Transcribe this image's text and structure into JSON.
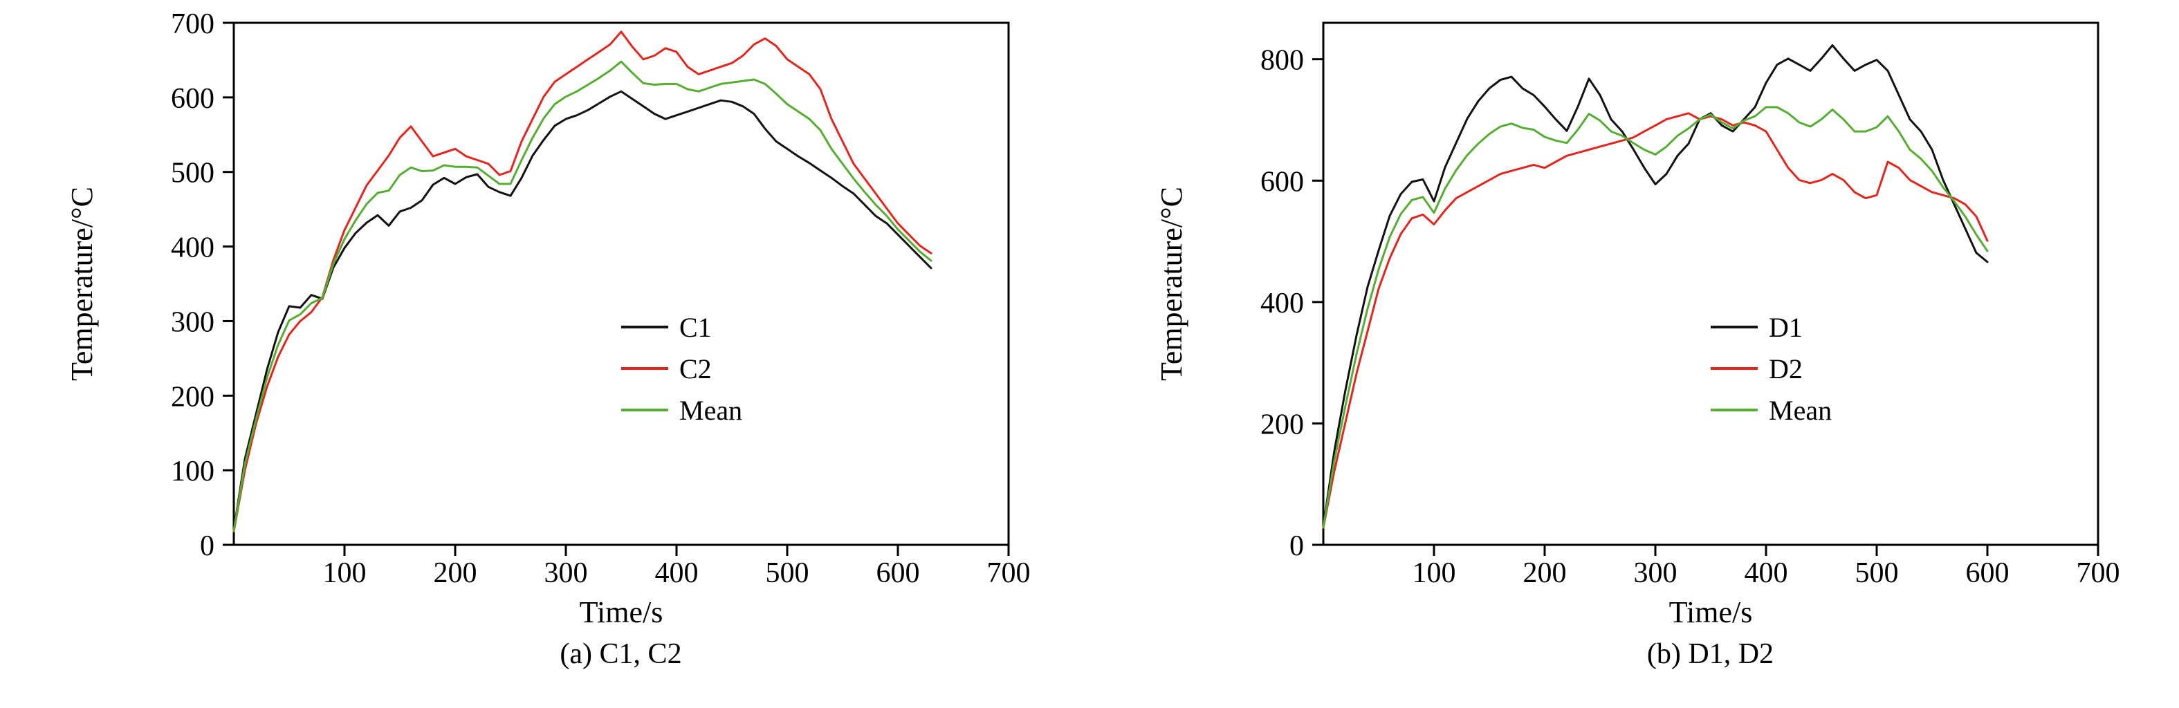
{
  "figure": {
    "caption_a": "(a) C1, C2",
    "caption_b": "(b) D1, D2"
  },
  "chart_data": [
    {
      "type": "line",
      "caption": "(a) C1, C2",
      "xlabel": "Time/s",
      "ylabel": "Temperature/°C",
      "xlim": [
        0,
        700
      ],
      "ylim": [
        0,
        700
      ],
      "xticks": [
        100,
        200,
        300,
        400,
        500,
        600,
        700
      ],
      "yticks": [
        0,
        100,
        200,
        300,
        400,
        500,
        600,
        700
      ],
      "grid": false,
      "legend_position": "right-center",
      "legend": [
        "C1",
        "C2",
        "Mean"
      ],
      "x": [
        0,
        10,
        20,
        30,
        40,
        50,
        60,
        70,
        80,
        90,
        100,
        110,
        120,
        130,
        140,
        150,
        160,
        170,
        180,
        190,
        200,
        210,
        220,
        230,
        240,
        250,
        260,
        270,
        280,
        290,
        300,
        310,
        320,
        330,
        340,
        350,
        360,
        370,
        380,
        390,
        400,
        410,
        420,
        430,
        440,
        450,
        460,
        470,
        480,
        490,
        500,
        510,
        520,
        530,
        540,
        550,
        560,
        570,
        580,
        590,
        600,
        610,
        620,
        630
      ],
      "series": [
        {
          "name": "C1",
          "color": "#111111",
          "values": [
            20,
            115,
            175,
            235,
            285,
            320,
            318,
            335,
            330,
            372,
            398,
            418,
            432,
            442,
            428,
            447,
            452,
            462,
            483,
            492,
            484,
            493,
            497,
            480,
            473,
            468,
            492,
            522,
            543,
            562,
            571,
            576,
            583,
            592,
            601,
            608,
            598,
            588,
            578,
            571,
            576,
            581,
            586,
            591,
            596,
            594,
            588,
            578,
            558,
            541,
            531,
            521,
            512,
            502,
            492,
            481,
            471,
            456,
            441,
            431,
            416,
            401,
            386,
            371
          ]
        },
        {
          "name": "C2",
          "color": "#e3261d",
          "values": [
            18,
            100,
            162,
            212,
            252,
            282,
            300,
            312,
            332,
            382,
            422,
            452,
            482,
            502,
            522,
            546,
            561,
            541,
            521,
            526,
            531,
            521,
            516,
            511,
            496,
            501,
            541,
            571,
            601,
            621,
            631,
            641,
            651,
            661,
            671,
            688,
            668,
            651,
            656,
            666,
            661,
            641,
            631,
            636,
            641,
            646,
            656,
            671,
            679,
            669,
            651,
            641,
            631,
            611,
            571,
            541,
            511,
            491,
            471,
            451,
            431,
            416,
            401,
            391
          ]
        },
        {
          "name": "Mean",
          "color": "#55ae31",
          "values": [
            19,
            108,
            168,
            224,
            268,
            301,
            309,
            324,
            331,
            377,
            410,
            435,
            457,
            472,
            475,
            496,
            506,
            501,
            502,
            509,
            507,
            507,
            506,
            495,
            484,
            484,
            516,
            546,
            572,
            591,
            601,
            608,
            617,
            626,
            636,
            648,
            633,
            619,
            617,
            618,
            618,
            611,
            608,
            613,
            618,
            620,
            622,
            624,
            618,
            605,
            591,
            581,
            571,
            556,
            531,
            511,
            491,
            473,
            456,
            441,
            423,
            408,
            393,
            381
          ]
        }
      ]
    },
    {
      "type": "line",
      "caption": "(b) D1, D2",
      "xlabel": "Time/s",
      "ylabel": "Temperature/°C",
      "xlim": [
        0,
        700
      ],
      "ylim": [
        0,
        860
      ],
      "xticks": [
        100,
        200,
        300,
        400,
        500,
        600,
        700
      ],
      "yticks": [
        0,
        200,
        400,
        600,
        800
      ],
      "grid": false,
      "legend_position": "right-center",
      "legend": [
        "D1",
        "D2",
        "Mean"
      ],
      "x": [
        0,
        10,
        20,
        30,
        40,
        50,
        60,
        70,
        80,
        90,
        100,
        110,
        120,
        130,
        140,
        150,
        160,
        170,
        180,
        190,
        200,
        210,
        220,
        230,
        240,
        250,
        260,
        270,
        280,
        290,
        300,
        310,
        320,
        330,
        340,
        350,
        360,
        370,
        380,
        390,
        400,
        410,
        420,
        430,
        440,
        450,
        460,
        470,
        480,
        490,
        500,
        510,
        520,
        530,
        540,
        550,
        560,
        570,
        580,
        590,
        600
      ],
      "series": [
        {
          "name": "D1",
          "color": "#111111",
          "values": [
            30,
            155,
            255,
            345,
            425,
            485,
            542,
            578,
            598,
            602,
            566,
            622,
            662,
            702,
            731,
            752,
            766,
            771,
            752,
            741,
            722,
            701,
            682,
            722,
            768,
            741,
            701,
            681,
            652,
            621,
            594,
            611,
            641,
            661,
            701,
            711,
            691,
            681,
            701,
            721,
            761,
            791,
            801,
            791,
            781,
            801,
            823,
            801,
            781,
            791,
            799,
            781,
            741,
            701,
            681,
            651,
            601,
            561,
            521,
            481,
            466
          ]
        },
        {
          "name": "D2",
          "color": "#e3261d",
          "values": [
            28,
            122,
            202,
            282,
            352,
            422,
            472,
            512,
            538,
            544,
            528,
            551,
            571,
            581,
            591,
            601,
            611,
            616,
            621,
            626,
            621,
            631,
            641,
            646,
            651,
            656,
            661,
            666,
            671,
            681,
            691,
            701,
            706,
            711,
            701,
            706,
            701,
            691,
            696,
            691,
            681,
            651,
            621,
            601,
            596,
            601,
            611,
            601,
            581,
            571,
            576,
            631,
            621,
            601,
            591,
            581,
            576,
            571,
            561,
            541,
            501
          ]
        },
        {
          "name": "Mean",
          "color": "#55ae31",
          "values": [
            29,
            139,
            229,
            314,
            389,
            454,
            507,
            545,
            568,
            573,
            547,
            587,
            617,
            642,
            661,
            677,
            689,
            694,
            687,
            684,
            672,
            666,
            662,
            684,
            710,
            699,
            681,
            674,
            662,
            651,
            643,
            656,
            674,
            686,
            701,
            709,
            696,
            686,
            699,
            706,
            721,
            721,
            711,
            696,
            689,
            701,
            717,
            701,
            681,
            681,
            688,
            706,
            681,
            651,
            636,
            616,
            589,
            566,
            541,
            511,
            484
          ]
        }
      ]
    }
  ]
}
